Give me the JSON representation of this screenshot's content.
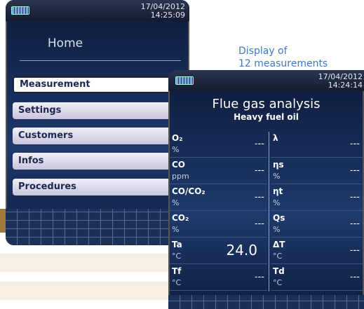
{
  "home_screen": {
    "date": "17/04/2012",
    "time": "14:25:09",
    "title": "Home",
    "menu": [
      "Measurement",
      "Settings",
      "Customers",
      "Infos",
      "Procedures"
    ]
  },
  "caption": [
    "Display of",
    "12 measurements"
  ],
  "measurement_screen": {
    "date": "17/04/2012",
    "time": "14:24:14",
    "title": "Flue gas analysis",
    "subtitle": "Heavy fuel oil",
    "left": [
      {
        "name": "O₂",
        "unit": "%",
        "value": "---"
      },
      {
        "name": "CO",
        "unit": "ppm",
        "value": "---"
      },
      {
        "name": "CO/CO₂",
        "unit": "%",
        "value": "---"
      },
      {
        "name": "CO₂",
        "unit": "%",
        "value": "---"
      },
      {
        "name": "Ta",
        "unit": "°C",
        "value": "24.0"
      },
      {
        "name": "Tf",
        "unit": "°C",
        "value": "---"
      }
    ],
    "right": [
      {
        "name": "λ",
        "unit": null,
        "value": "---"
      },
      {
        "name": "ηs",
        "unit": "%",
        "value": "---"
      },
      {
        "name": "ηt",
        "unit": "%",
        "value": "---"
      },
      {
        "name": "Qs",
        "unit": "%",
        "value": "---"
      },
      {
        "name": "ΔT",
        "unit": "°C",
        "value": "---"
      },
      {
        "name": "Td",
        "unit": "°C",
        "value": "---"
      }
    ]
  }
}
